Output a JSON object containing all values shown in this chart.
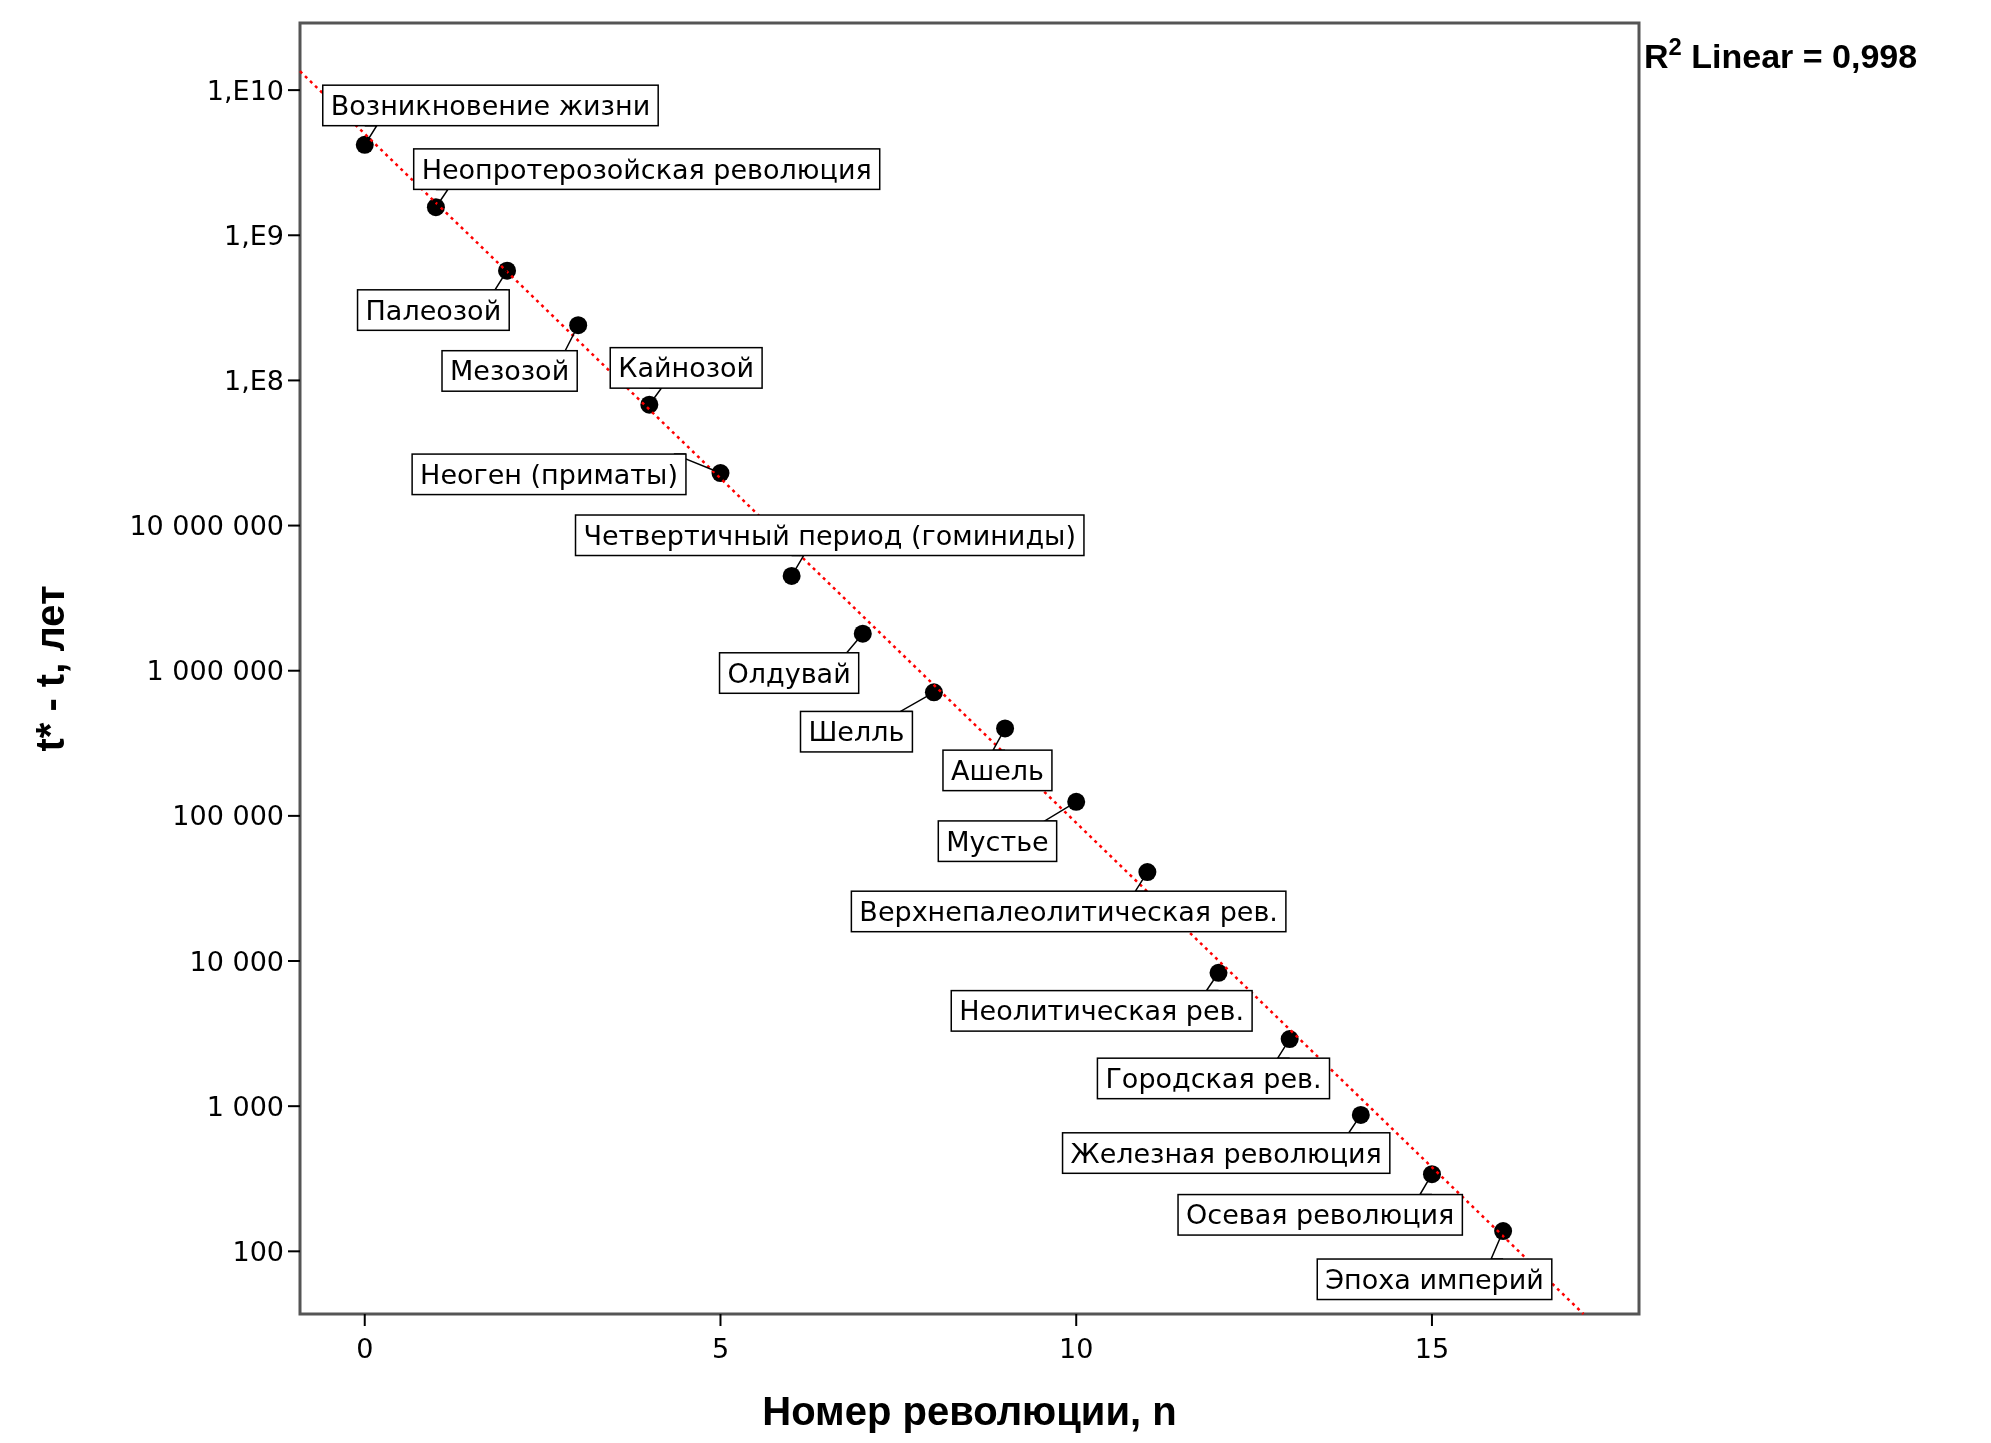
{
  "chart_data": {
    "type": "scatter",
    "xlabel": "Номер революции, n",
    "ylabel": "t* - t, лет",
    "log": "y",
    "xlim": [
      -0.91,
      17.91
    ],
    "ylim": [
      37,
      29000000000.0
    ],
    "xticks": [
      0,
      5,
      10,
      15
    ],
    "yticks": [
      {
        "value": 100,
        "label": "100"
      },
      {
        "value": 1000,
        "label": "1 000"
      },
      {
        "value": 10000,
        "label": "10 000"
      },
      {
        "value": 100000,
        "label": "100 000"
      },
      {
        "value": 1000000,
        "label": "1 000 000"
      },
      {
        "value": 10000000,
        "label": "10 000 000"
      },
      {
        "value": 100000000,
        "label": "1,E8"
      },
      {
        "value": 1000000000,
        "label": "1,E9"
      },
      {
        "value": 10000000000,
        "label": "1,E10"
      }
    ],
    "grid": false,
    "marker": "circle",
    "series": [
      {
        "color": "#000000",
        "x": [
          0,
          1,
          2,
          3,
          4,
          5,
          6,
          7,
          8,
          9,
          10,
          11,
          12,
          13,
          14,
          15,
          16
        ],
        "values": [
          4200000000.0,
          1560000000.0,
          570000000.0,
          240000000.0,
          68000000.0,
          23000000.0,
          4500000.0,
          1800000.0,
          710000.0,
          400000.0,
          125000.0,
          41000.0,
          8300,
          2900,
          870,
          340,
          138
        ]
      },
      {
        "type": "line",
        "color": "#ff0000",
        "line_style": "dotted",
        "marker": "none",
        "x": [
          -0.91,
          17.13
        ],
        "values": [
          13500000000.0,
          37
        ]
      }
    ],
    "annotations": [
      "R$^{2}$ Linear = 0,998",
      {
        "text": "Возникновение жизни",
        "x": 0,
        "y": 4200000000.0
      },
      {
        "text": "Неопротерозойская революция",
        "x": 1,
        "y": 1560000000.0
      },
      {
        "text": "Палеозой",
        "x": 2,
        "y": 570000000.0
      },
      {
        "text": "Мезозой",
        "x": 3,
        "y": 240000000.0
      },
      {
        "text": "Кайнозой",
        "x": 4,
        "y": 68000000.0
      },
      {
        "text": "Неоген (приматы)",
        "x": 5,
        "y": 23000000.0
      },
      {
        "text": "Четвертичный период (гоминиды)",
        "x": 6,
        "y": 4500000.0
      },
      {
        "text": "Олдувай",
        "x": 7,
        "y": 1800000.0
      },
      {
        "text": "Шелль",
        "x": 8,
        "y": 710000.0
      },
      {
        "text": "Ашель",
        "x": 9,
        "y": 400000.0
      },
      {
        "text": "Мустье",
        "x": 10,
        "y": 125000.0
      },
      {
        "text": "Верхнепалеолитическая рев.",
        "x": 11,
        "y": 41000.0
      },
      {
        "text": "Неолитическая рев.",
        "x": 12,
        "y": 8300
      },
      {
        "text": "Городская рев.",
        "x": 13,
        "y": 2900
      },
      {
        "text": "Железная революция",
        "x": 14,
        "y": 870
      },
      {
        "text": "Осевая революция",
        "x": 15,
        "y": 340
      },
      {
        "text": "Эпоха империй",
        "x": 16,
        "y": 138
      }
    ]
  }
}
